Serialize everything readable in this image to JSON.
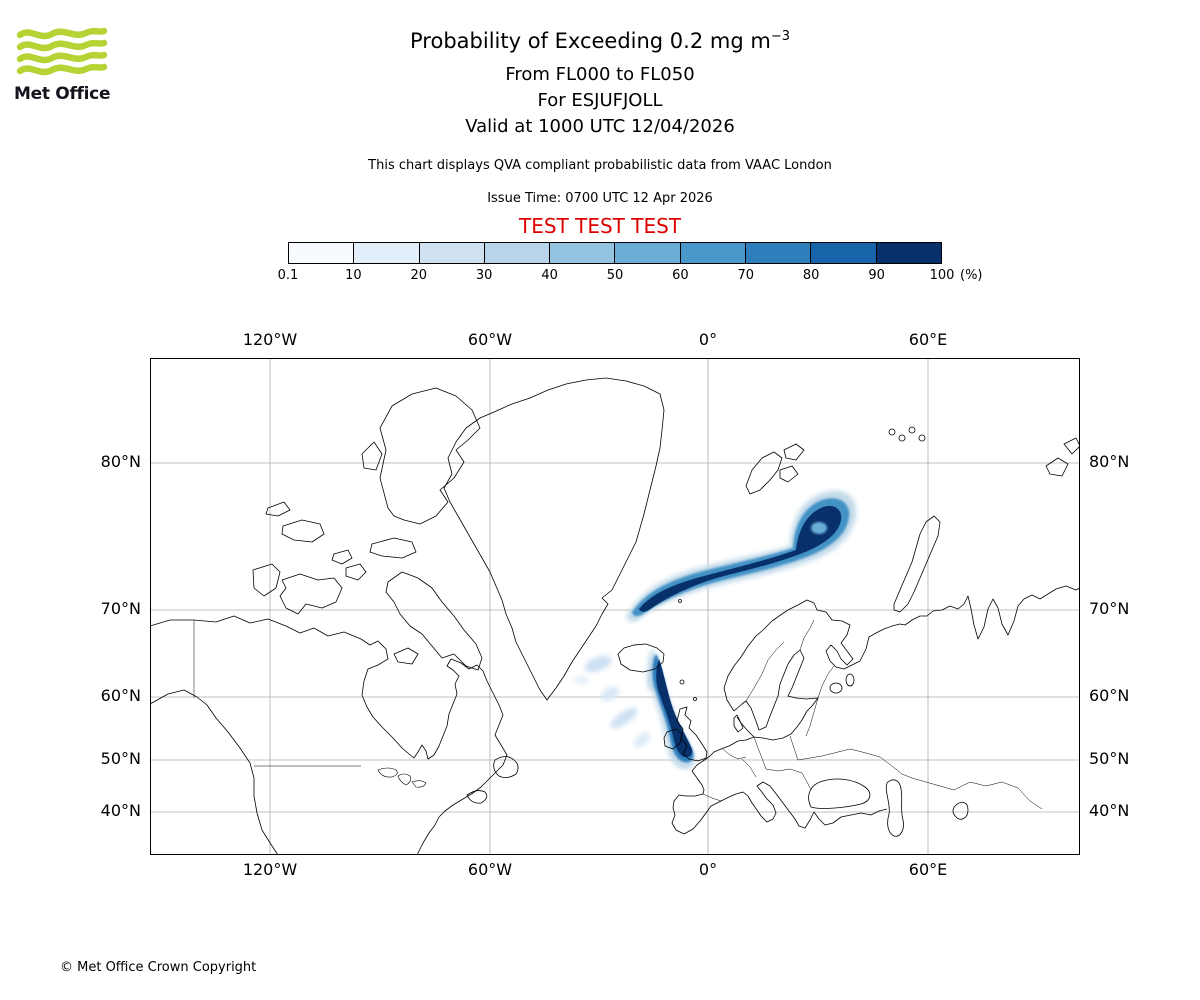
{
  "logo": {
    "brand": "Met Office",
    "green": "#b5d334"
  },
  "header": {
    "title_main": "Probability of Exceeding 0.2 mg m",
    "title_sup": "−3",
    "subtitles": [
      "From FL000 to FL050",
      "For ESJUFJOLL",
      "Valid at 1000 UTC 12/04/2026"
    ],
    "note": "This chart displays QVA compliant probabilistic data from VAAC London",
    "issue_time": "Issue Time: 0700 UTC 12 Apr 2026",
    "test_banner": "TEST TEST TEST",
    "test_color": "#dd0000"
  },
  "legend": {
    "ticks": [
      "0.1",
      "10",
      "20",
      "30",
      "40",
      "50",
      "60",
      "70",
      "80",
      "90",
      "100"
    ],
    "unit": "(%)",
    "colors": [
      "#f7fbff",
      "#e2eef9",
      "#d0e2f2",
      "#b7d4ea",
      "#94c4df",
      "#6aaed6",
      "#4a98c9",
      "#2e7ebc",
      "#1764ab",
      "#08306b"
    ]
  },
  "map": {
    "top_labels": [
      "120°W",
      "60°W",
      "0°",
      "60°E"
    ],
    "bottom_labels": [
      "120°W",
      "60°W",
      "0°",
      "60°E"
    ],
    "left_labels": [
      "80°N",
      "70°N",
      "60°N",
      "50°N",
      "40°N"
    ],
    "right_labels": [
      "80°N",
      "70°N",
      "60°N",
      "50°N",
      "40°N"
    ]
  },
  "footer": {
    "copyright": "© Met Office Crown Copyright"
  },
  "chart_data": {
    "type": "heatmap",
    "title": "Probability of Exceeding 0.2 mg m−3",
    "flight_levels": "FL000 to FL050",
    "volcano": "ESJUFJOLL",
    "valid_time": "1000 UTC 12/04/2026",
    "issue_time": "0700 UTC 12 Apr 2026",
    "source": "VAAC London",
    "percent_levels": [
      0.1,
      10,
      20,
      30,
      40,
      50,
      60,
      70,
      80,
      90,
      100
    ],
    "colormap": "Blues",
    "projection": "Mercator",
    "visible_lon_labels": [
      "120°W",
      "60°W",
      "0°",
      "60°E"
    ],
    "visible_lat_labels": [
      "80°N",
      "70°N",
      "60°N",
      "50°N",
      "40°N"
    ],
    "features": [
      {
        "name": "main-ash-band",
        "probability": "70–100%",
        "description": "Broad high-probability band from just north of Iceland extending east-northeast across the Norwegian Sea (~70–77°N, 25°W–25°E) ending in a clockwise hook south of Svalbard"
      },
      {
        "name": "southern-filament",
        "probability": "60–100%",
        "description": "Narrow curved filament from southeast Iceland arcing south-southeast to a blob over Scotland / Northern Ireland (~55°N, 5°W)"
      },
      {
        "name": "low-probability-wisps",
        "probability": "≤30%",
        "description": "Faint scattered low-probability patches southwest of Iceland (~55–64°N, 25–35°W)"
      }
    ]
  }
}
